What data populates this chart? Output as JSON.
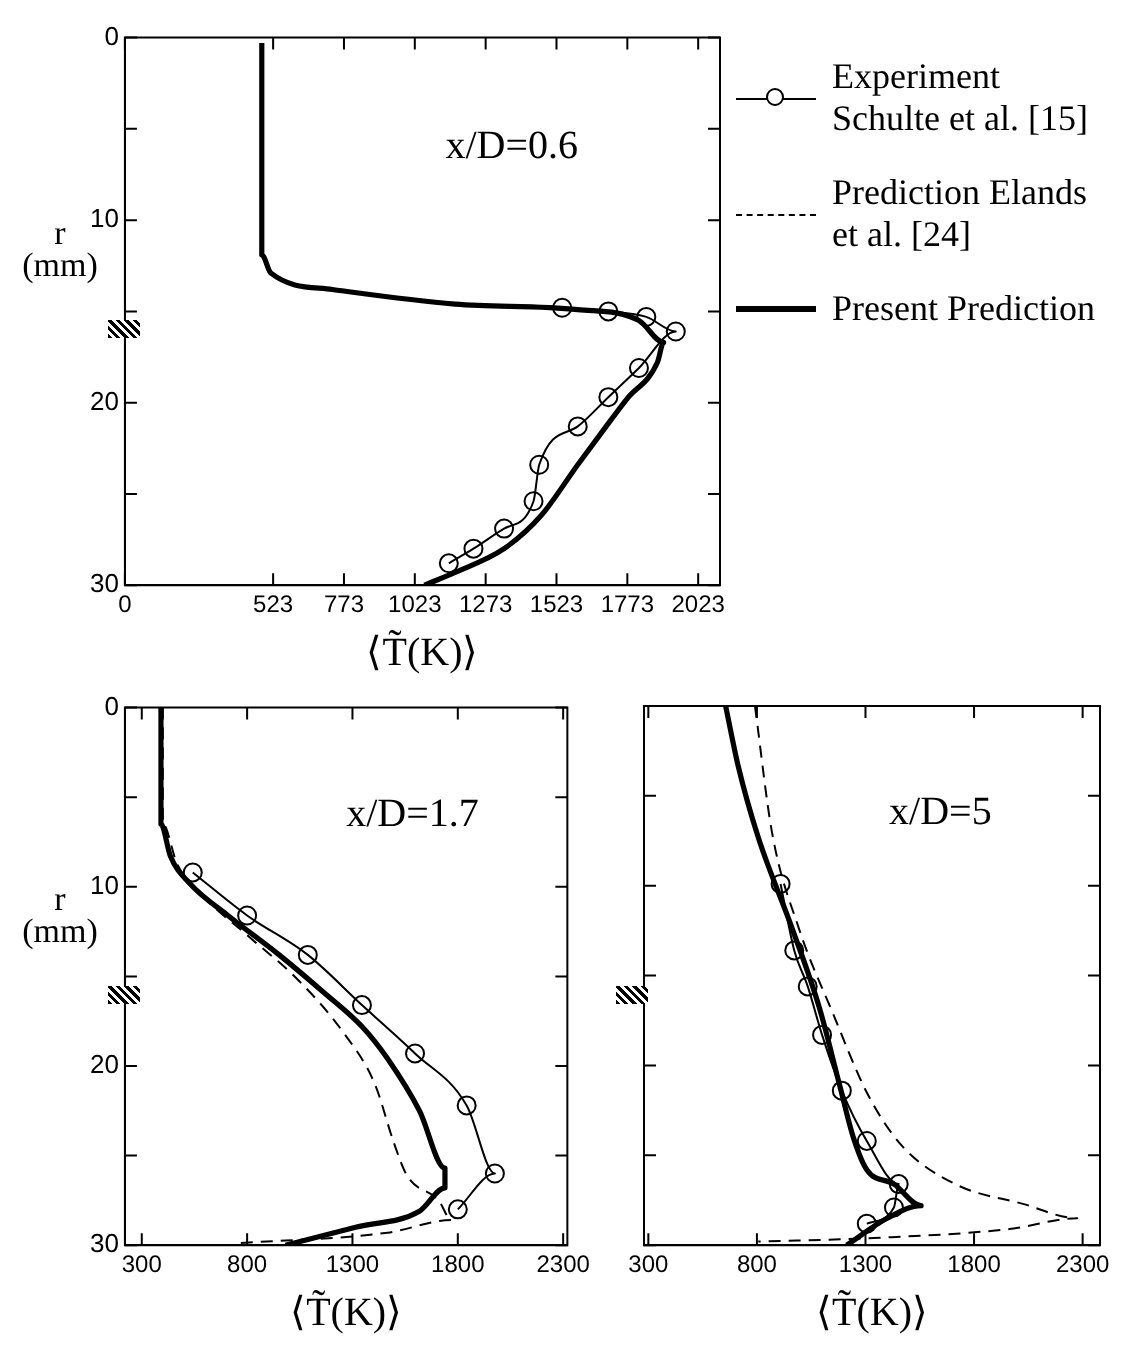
{
  "chart_data": [
    {
      "type": "line",
      "xlabel": "⟨T̃(K)⟩",
      "ylabel": "r (mm)",
      "annotations": [
        "x/D=0.6"
      ],
      "legend": "right",
      "grid": false,
      "xlim": [
        0,
        2100
      ],
      "xticks": [
        0,
        523,
        773,
        1023,
        1273,
        1523,
        1773,
        2023
      ],
      "ylim": [
        30,
        0
      ],
      "yticks": [
        0,
        {
          "value": 5,
          "label": null
        },
        10,
        {
          "value": 15,
          "label": null
        },
        20,
        {
          "value": 25,
          "label": null
        },
        30
      ],
      "series": [
        {
          "name": "Experiment Schulte et al. [15]",
          "color": "#000000",
          "marker": "circle",
          "line_style": "solid",
          "x": [
            1543,
            1706,
            1840,
            1944,
            1814,
            1706,
            1598,
            1462,
            1442,
            1338,
            1230,
            1143
          ],
          "values": [
            14.8,
            15.0,
            15.3,
            16.1,
            18.1,
            19.7,
            21.3,
            23.4,
            25.4,
            26.9,
            28.0,
            28.8
          ]
        },
        {
          "name": "Prediction Elands et al. [24]",
          "color": "#000000",
          "marker": "none",
          "line_style": "dashed"
        },
        {
          "name": "Present Prediction",
          "color": "#000000",
          "marker": "none",
          "line_style": "solid",
          "x": [
            483,
            483,
            515,
            732,
            1165,
            1598,
            1814,
            1901,
            1879,
            1771,
            1684,
            1598,
            1468,
            1338,
            1165,
            1057
          ],
          "values": [
            0.3,
            11.9,
            12.9,
            13.8,
            14.6,
            14.9,
            15.5,
            16.7,
            17.8,
            19.8,
            21.6,
            23.4,
            26.2,
            28.0,
            29.3,
            30
          ]
        }
      ]
    },
    {
      "type": "line",
      "xlabel": "⟨T̃(K)⟩",
      "ylabel": "r (mm)",
      "annotations": [
        "x/D=1.7"
      ],
      "grid": false,
      "xlim": [
        220,
        2320
      ],
      "xticks": [
        300,
        800,
        1300,
        1800,
        2300
      ],
      "ylim": [
        30,
        0
      ],
      "yticks": [
        0,
        {
          "value": 5,
          "label": null
        },
        10,
        {
          "value": 15,
          "label": null
        },
        20,
        {
          "value": 25,
          "label": null
        },
        30
      ],
      "series": [
        {
          "color": "#000000",
          "marker": "circle",
          "line_style": "solid",
          "x": [
            542,
            800,
            1088,
            1345,
            1597,
            1842,
            1976,
            1800
          ],
          "values": [
            9.2,
            11.6,
            13.8,
            16.6,
            19.3,
            22.2,
            26.0,
            28.0
          ]
        },
        {
          "color": "#000000",
          "marker": "none",
          "line_style": "dashed",
          "x": [
            400,
            400,
            467,
            588,
            800,
            1042,
            1255,
            1406,
            1497,
            1558,
            1709,
            1770,
            1467,
            739
          ],
          "values": [
            0,
            6.5,
            8.7,
            10.5,
            12.7,
            15.2,
            18.1,
            21.0,
            24.3,
            26.1,
            27.5,
            28.6,
            29.3,
            29.9
          ]
        },
        {
          "color": "#000000",
          "marker": "none",
          "line_style": "solid",
          "x": [
            391,
            391,
            436,
            527,
            709,
            952,
            1164,
            1345,
            1467,
            1618,
            1739,
            1739,
            1618,
            1315,
            982
          ],
          "values": [
            0,
            6.5,
            8.3,
            9.8,
            11.6,
            13.8,
            15.9,
            17.8,
            19.6,
            22.5,
            25.7,
            26.8,
            28.1,
            29.0,
            30
          ]
        }
      ]
    },
    {
      "type": "line",
      "xlabel": "⟨T̃(K)⟩",
      "annotations": [
        "x/D=5"
      ],
      "grid": false,
      "tick_labels": "x",
      "xlim": [
        280,
        2380
      ],
      "xticks": [
        300,
        800,
        1300,
        1800,
        2300
      ],
      "ylim": [
        30,
        0
      ],
      "yticks": [
        0,
        5,
        10,
        15,
        20,
        25,
        30
      ],
      "series": [
        {
          "color": "#000000",
          "marker": "circle",
          "line_style": "solid",
          "x": [
            909,
            972,
            1034,
            1100,
            1191,
            1306,
            1453,
            1431,
            1306
          ],
          "values": [
            9.9,
            13.6,
            15.6,
            18.3,
            21.4,
            24.2,
            26.6,
            27.9,
            28.8
          ]
        },
        {
          "color": "#000000",
          "marker": "none",
          "line_style": "dashed",
          "x": [
            791,
            869,
            994,
            1150,
            1306,
            1463,
            1713,
            2025,
            2275,
            1963,
            1338,
            806
          ],
          "values": [
            0,
            7.0,
            12.4,
            17.1,
            21.5,
            24.4,
            26.6,
            27.7,
            28.5,
            29.1,
            29.6,
            29.8
          ]
        },
        {
          "color": "#000000",
          "marker": "none",
          "line_style": "solid",
          "x": [
            656,
            713,
            806,
            963,
            1088,
            1181,
            1244,
            1306,
            1431,
            1556,
            1400,
            1213
          ],
          "values": [
            0,
            3.3,
            7.3,
            12.4,
            16.8,
            21.1,
            24.0,
            25.8,
            26.6,
            27.8,
            28.5,
            30
          ]
        }
      ]
    }
  ]
}
